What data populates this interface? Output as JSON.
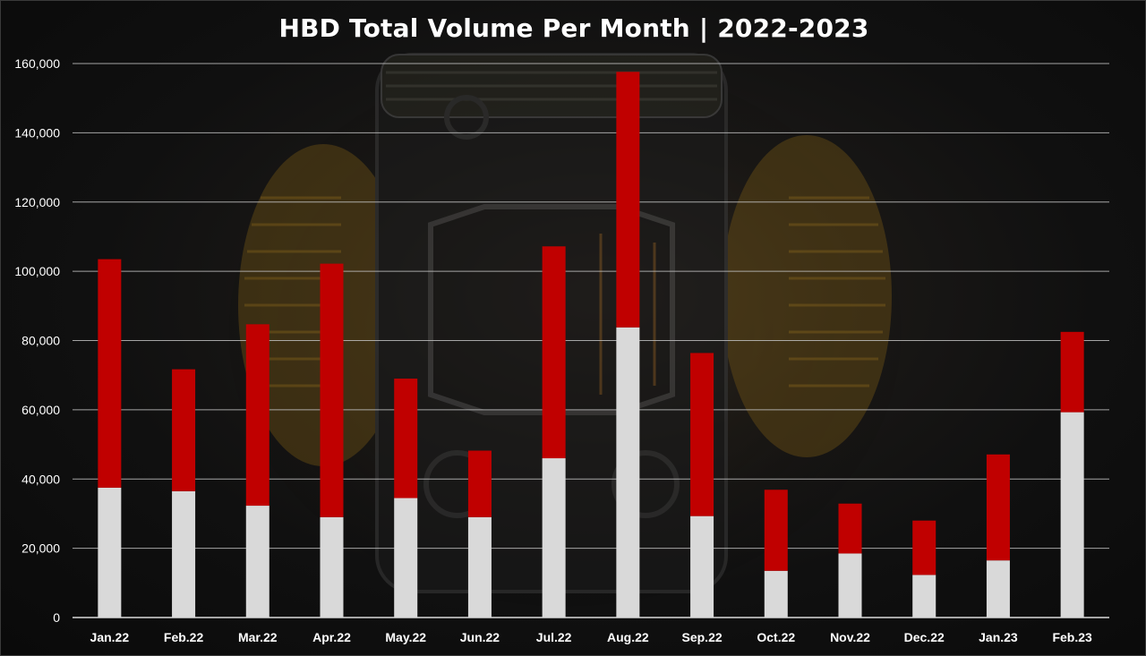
{
  "chart_data": {
    "type": "bar",
    "stacked": true,
    "title": "HBD Total Volume Per Month | 2022-2023",
    "xlabel": "",
    "ylabel": "",
    "ylim": [
      0,
      160000
    ],
    "y_ticks": [
      "0",
      "20,000",
      "40,000",
      "60,000",
      "80,000",
      "100,000",
      "120,000",
      "140,000",
      "160,000"
    ],
    "y_tick_values": [
      0,
      20000,
      40000,
      60000,
      80000,
      100000,
      120000,
      140000,
      160000
    ],
    "grid": true,
    "legend": "none",
    "categories": [
      "Jan.22",
      "Feb.22",
      "Mar.22",
      "Apr.22",
      "May.22",
      "Jun.22",
      "Jul.22",
      "Aug.22",
      "Sep.22",
      "Oct.22",
      "Nov.22",
      "Dec.22",
      "Jan.23",
      "Feb.23"
    ],
    "series": [
      {
        "color": "#d9d9d9",
        "values": [
          37500,
          36500,
          32300,
          29000,
          34500,
          29000,
          46000,
          83800,
          29300,
          13500,
          18500,
          12300,
          16500,
          59300
        ]
      },
      {
        "color": "#c00000",
        "values": [
          66000,
          35200,
          52400,
          73200,
          34500,
          19200,
          61200,
          73800,
          47100,
          23400,
          14400,
          15700,
          30600,
          23200
        ]
      }
    ]
  }
}
